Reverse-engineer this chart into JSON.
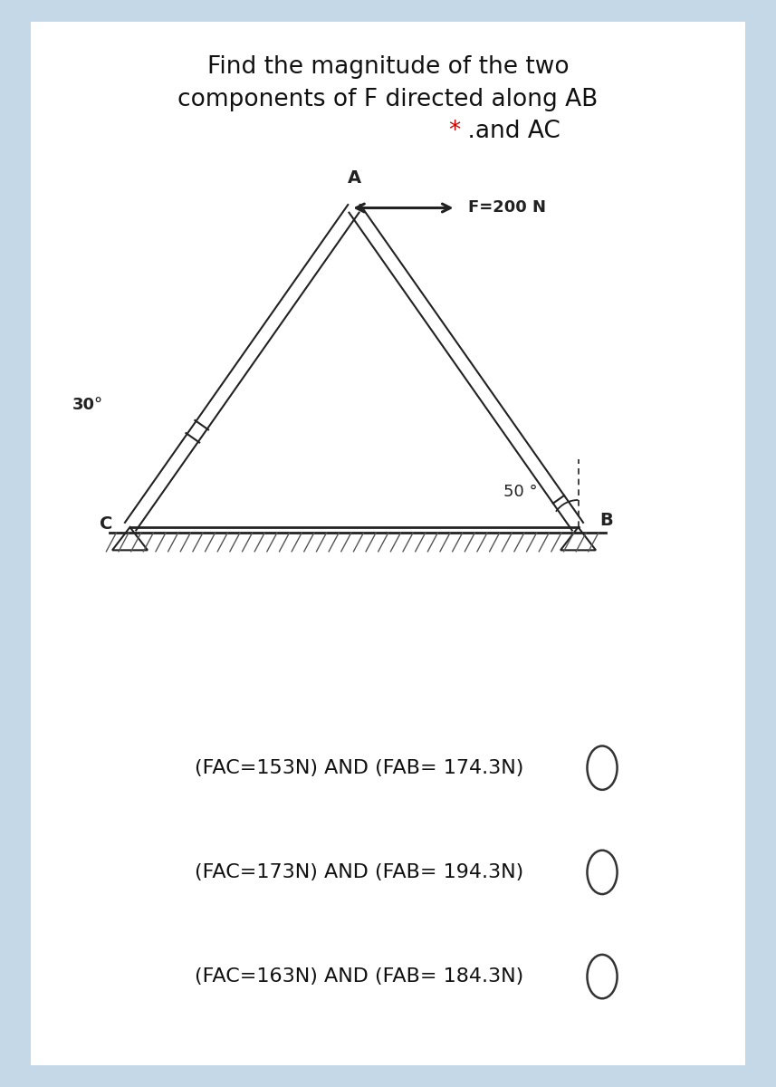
{
  "bg_color": "#c5d8e8",
  "card_color": "#ffffff",
  "title_line1": "Find the magnitude of the two",
  "title_line2": "components of F directed along AB",
  "title_line3_star": "*",
  "title_line3_rest": " .and AC",
  "star_color": "#cc0000",
  "title_fontsize": 19,
  "label_A": "A",
  "label_B": "B",
  "label_C": "C",
  "angle_30": "30°",
  "angle_50": "50 °",
  "force_label": "F=200 N",
  "options": [
    "(FAC=153N) AND (FAB= 174.3N)",
    "(FAC=173N) AND (FAB= 194.3N)",
    "(FAC=163N) AND (FAB= 184.3N)"
  ],
  "option_fontsize": 16,
  "diagram_color": "#222222",
  "A": [
    4.5,
    7.5
  ],
  "B": [
    7.8,
    2.8
  ],
  "C": [
    1.2,
    2.8
  ]
}
